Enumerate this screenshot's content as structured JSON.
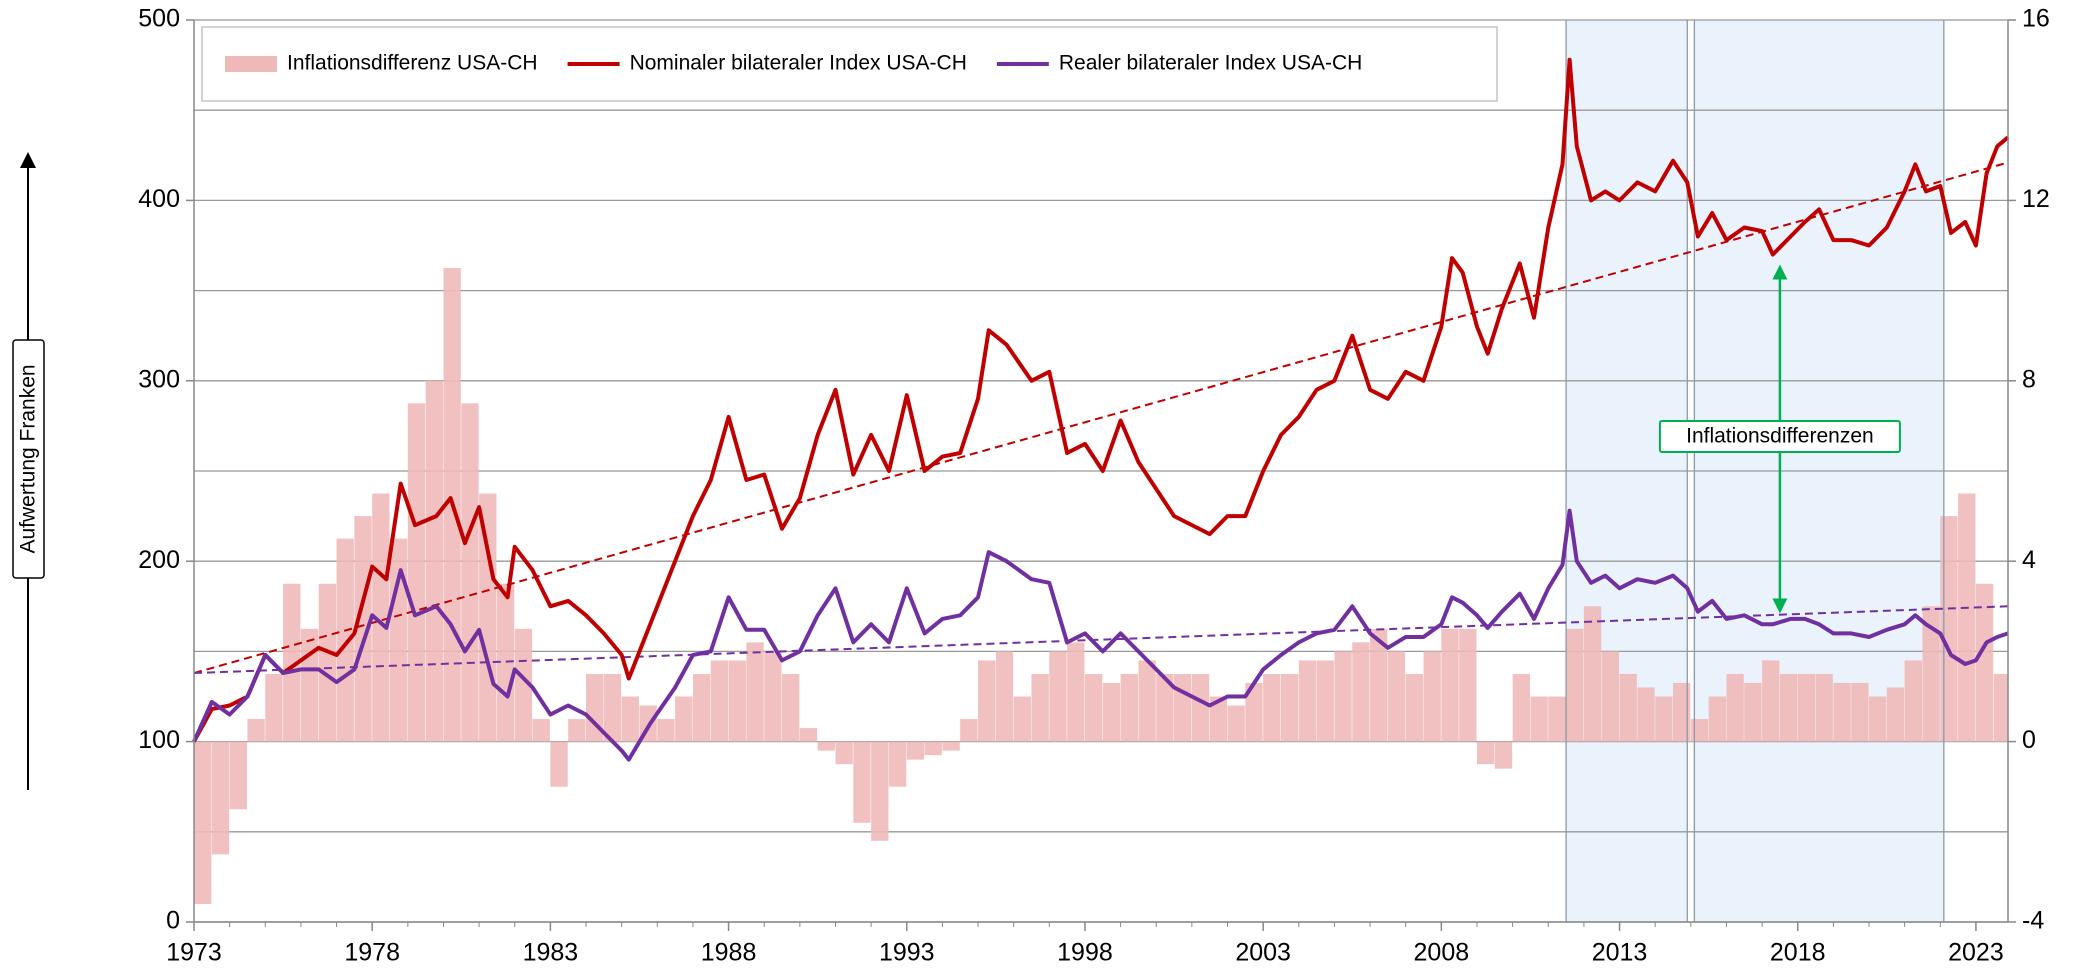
{
  "chart_data": {
    "type": "combo",
    "side_label": "Aufwertung Franken",
    "annotation": "Inflationsdifferenzen",
    "annotation_color": "#00b050",
    "xlim": [
      1973,
      2023.9
    ],
    "xticks": [
      1973,
      1978,
      1983,
      1988,
      1993,
      1998,
      2003,
      2008,
      2013,
      2018,
      2023
    ],
    "ylim": [
      0,
      500
    ],
    "yticks": [
      0,
      100,
      200,
      300,
      400,
      500
    ],
    "ygrid": [
      0,
      50,
      100,
      150,
      200,
      250,
      300,
      350,
      400,
      450,
      500
    ],
    "y2lim": [
      -4,
      16
    ],
    "y2ticks": [
      -4,
      0,
      4,
      8,
      12,
      16
    ],
    "grid": true,
    "legend": "top-left",
    "shaded_regions": [
      [
        2011.5,
        2014.9
      ],
      [
        2015.1,
        2022.1
      ]
    ],
    "shade_color": "#eaf2fc",
    "series": [
      {
        "name": "Inflationsdifferenz USA-CH",
        "type": "bar",
        "axis": "y2",
        "color": "#efb9b9",
        "x": [
          1973,
          1973.5,
          1974,
          1974.5,
          1975,
          1975.5,
          1976,
          1976.5,
          1977,
          1977.5,
          1978,
          1978.5,
          1979,
          1979.5,
          1980,
          1980.5,
          1981,
          1981.5,
          1982,
          1982.5,
          1983,
          1983.5,
          1984,
          1984.5,
          1985,
          1985.5,
          1986,
          1986.5,
          1987,
          1987.5,
          1988,
          1988.5,
          1989,
          1989.5,
          1990,
          1990.5,
          1991,
          1991.5,
          1992,
          1992.5,
          1993,
          1993.5,
          1994,
          1994.5,
          1995,
          1995.5,
          1996,
          1996.5,
          1997,
          1997.5,
          1998,
          1998.5,
          1999,
          1999.5,
          2000,
          2000.5,
          2001,
          2001.5,
          2002,
          2002.5,
          2003,
          2003.5,
          2004,
          2004.5,
          2005,
          2005.5,
          2006,
          2006.5,
          2007,
          2007.5,
          2008,
          2008.5,
          2009,
          2009.5,
          2010,
          2010.5,
          2011,
          2011.5,
          2012,
          2012.5,
          2013,
          2013.5,
          2014,
          2014.5,
          2015,
          2015.5,
          2016,
          2016.5,
          2017,
          2017.5,
          2018,
          2018.5,
          2019,
          2019.5,
          2020,
          2020.5,
          2021,
          2021.5,
          2022,
          2022.5,
          2023,
          2023.5
        ],
        "values": [
          -3.6,
          -2.5,
          -1.5,
          0.5,
          1.5,
          3.5,
          2.5,
          3.5,
          4.5,
          5.0,
          5.5,
          4.5,
          7.5,
          8.0,
          10.5,
          7.5,
          5.5,
          3.5,
          2.5,
          0.5,
          -1.0,
          0.5,
          1.5,
          1.5,
          1.0,
          0.8,
          0.5,
          1.0,
          1.5,
          1.8,
          1.8,
          2.2,
          2.0,
          1.5,
          0.3,
          -0.2,
          -0.5,
          -1.8,
          -2.2,
          -1.0,
          -0.4,
          -0.3,
          -0.2,
          0.5,
          1.8,
          2.0,
          1.0,
          1.5,
          2.0,
          2.2,
          1.5,
          1.3,
          1.5,
          1.8,
          1.5,
          1.5,
          1.5,
          1.0,
          0.8,
          1.3,
          1.5,
          1.5,
          1.8,
          1.8,
          2.0,
          2.2,
          2.5,
          2.0,
          1.5,
          2.0,
          2.5,
          2.5,
          -0.5,
          -0.6,
          1.5,
          1.0,
          1.0,
          2.5,
          3.0,
          2.0,
          1.5,
          1.2,
          1.0,
          1.3,
          0.5,
          1.0,
          1.5,
          1.3,
          1.8,
          1.5,
          1.5,
          1.5,
          1.3,
          1.3,
          1.0,
          1.2,
          1.8,
          3.0,
          5.0,
          5.5,
          3.5,
          1.5
        ]
      },
      {
        "name": "Nominaler bilateraler Index USA-CH",
        "type": "line",
        "color": "#c00000",
        "x": [
          1973,
          1973.5,
          1974,
          1974.5,
          1975,
          1975.5,
          1976,
          1976.5,
          1977,
          1977.5,
          1978,
          1978.4,
          1978.8,
          1979.2,
          1979.8,
          1980.2,
          1980.6,
          1981,
          1981.4,
          1981.8,
          1982,
          1982.5,
          1983,
          1983.5,
          1984,
          1984.5,
          1985,
          1985.2,
          1985.8,
          1986.5,
          1987,
          1987.5,
          1988,
          1988.5,
          1989,
          1989.5,
          1990,
          1990.5,
          1991,
          1991.5,
          1992,
          1992.5,
          1993,
          1993.5,
          1994,
          1994.5,
          1995,
          1995.3,
          1995.8,
          1996.5,
          1997,
          1997.5,
          1998,
          1998.5,
          1999,
          1999.5,
          2000,
          2000.5,
          2001,
          2001.5,
          2002,
          2002.5,
          2003,
          2003.5,
          2004,
          2004.5,
          2005,
          2005.5,
          2006,
          2006.5,
          2007,
          2007.5,
          2008,
          2008.3,
          2008.6,
          2009,
          2009.3,
          2009.7,
          2010.2,
          2010.6,
          2011,
          2011.4,
          2011.6,
          2011.8,
          2012.2,
          2012.6,
          2013,
          2013.5,
          2014,
          2014.5,
          2014.9,
          2015.2,
          2015.6,
          2016,
          2016.5,
          2017,
          2017.3,
          2017.8,
          2018.2,
          2018.6,
          2019,
          2019.5,
          2020,
          2020.5,
          2021,
          2021.3,
          2021.6,
          2022,
          2022.3,
          2022.7,
          2023,
          2023.3,
          2023.6,
          2023.9
        ],
        "values": [
          100,
          118,
          120,
          125,
          148,
          138,
          145,
          152,
          148,
          160,
          197,
          190,
          243,
          220,
          225,
          235,
          210,
          230,
          190,
          180,
          208,
          195,
          175,
          178,
          170,
          160,
          148,
          135,
          165,
          200,
          225,
          245,
          280,
          245,
          248,
          218,
          235,
          270,
          295,
          248,
          270,
          250,
          292,
          250,
          258,
          260,
          290,
          328,
          320,
          300,
          305,
          260,
          265,
          250,
          278,
          255,
          240,
          225,
          220,
          215,
          225,
          225,
          250,
          270,
          280,
          295,
          300,
          325,
          295,
          290,
          305,
          300,
          330,
          368,
          360,
          330,
          315,
          340,
          365,
          335,
          385,
          420,
          478,
          430,
          400,
          405,
          400,
          410,
          405,
          422,
          410,
          380,
          393,
          378,
          385,
          383,
          370,
          380,
          388,
          395,
          378,
          378,
          375,
          385,
          405,
          420,
          405,
          408,
          382,
          388,
          375,
          415,
          430,
          435
        ]
      },
      {
        "name": "Realer bilateraler Index USA-CH",
        "type": "line",
        "color": "#7030a0",
        "x": [
          1973,
          1973.5,
          1974,
          1974.5,
          1975,
          1975.5,
          1976,
          1976.5,
          1977,
          1977.5,
          1978,
          1978.4,
          1978.8,
          1979.2,
          1979.8,
          1980.2,
          1980.6,
          1981,
          1981.4,
          1981.8,
          1982,
          1982.5,
          1983,
          1983.5,
          1984,
          1984.5,
          1985,
          1985.2,
          1985.8,
          1986.5,
          1987,
          1987.5,
          1988,
          1988.5,
          1989,
          1989.5,
          1990,
          1990.5,
          1991,
          1991.5,
          1992,
          1992.5,
          1993,
          1993.5,
          1994,
          1994.5,
          1995,
          1995.3,
          1995.8,
          1996.5,
          1997,
          1997.5,
          1998,
          1998.5,
          1999,
          1999.5,
          2000,
          2000.5,
          2001,
          2001.5,
          2002,
          2002.5,
          2003,
          2003.5,
          2004,
          2004.5,
          2005,
          2005.5,
          2006,
          2006.5,
          2007,
          2007.5,
          2008,
          2008.3,
          2008.6,
          2009,
          2009.3,
          2009.7,
          2010.2,
          2010.6,
          2011,
          2011.4,
          2011.6,
          2011.8,
          2012.2,
          2012.6,
          2013,
          2013.5,
          2014,
          2014.5,
          2014.9,
          2015.2,
          2015.6,
          2016,
          2016.5,
          2017,
          2017.3,
          2017.8,
          2018.2,
          2018.6,
          2019,
          2019.5,
          2020,
          2020.5,
          2021,
          2021.3,
          2021.6,
          2022,
          2022.3,
          2022.7,
          2023,
          2023.3,
          2023.6,
          2023.9
        ],
        "values": [
          100,
          122,
          115,
          125,
          148,
          138,
          140,
          140,
          133,
          140,
          170,
          163,
          195,
          170,
          175,
          165,
          150,
          162,
          132,
          125,
          140,
          130,
          115,
          120,
          115,
          105,
          95,
          90,
          110,
          130,
          148,
          150,
          180,
          162,
          162,
          145,
          150,
          170,
          185,
          155,
          165,
          155,
          185,
          160,
          168,
          170,
          180,
          205,
          200,
          190,
          188,
          155,
          160,
          150,
          160,
          150,
          140,
          130,
          125,
          120,
          125,
          125,
          140,
          148,
          155,
          160,
          162,
          175,
          160,
          152,
          158,
          158,
          165,
          180,
          177,
          170,
          163,
          172,
          182,
          168,
          185,
          198,
          228,
          200,
          188,
          192,
          185,
          190,
          188,
          192,
          185,
          172,
          178,
          168,
          170,
          165,
          165,
          168,
          168,
          165,
          160,
          160,
          158,
          162,
          165,
          170,
          165,
          160,
          148,
          143,
          145,
          155,
          158,
          160
        ]
      }
    ],
    "trendlines": [
      {
        "color": "#c00000",
        "x": [
          1973,
          2023.9
        ],
        "values": [
          138,
          421
        ]
      },
      {
        "color": "#7030a0",
        "x": [
          1973,
          2023.9
        ],
        "values": [
          138,
          175
        ]
      }
    ]
  }
}
